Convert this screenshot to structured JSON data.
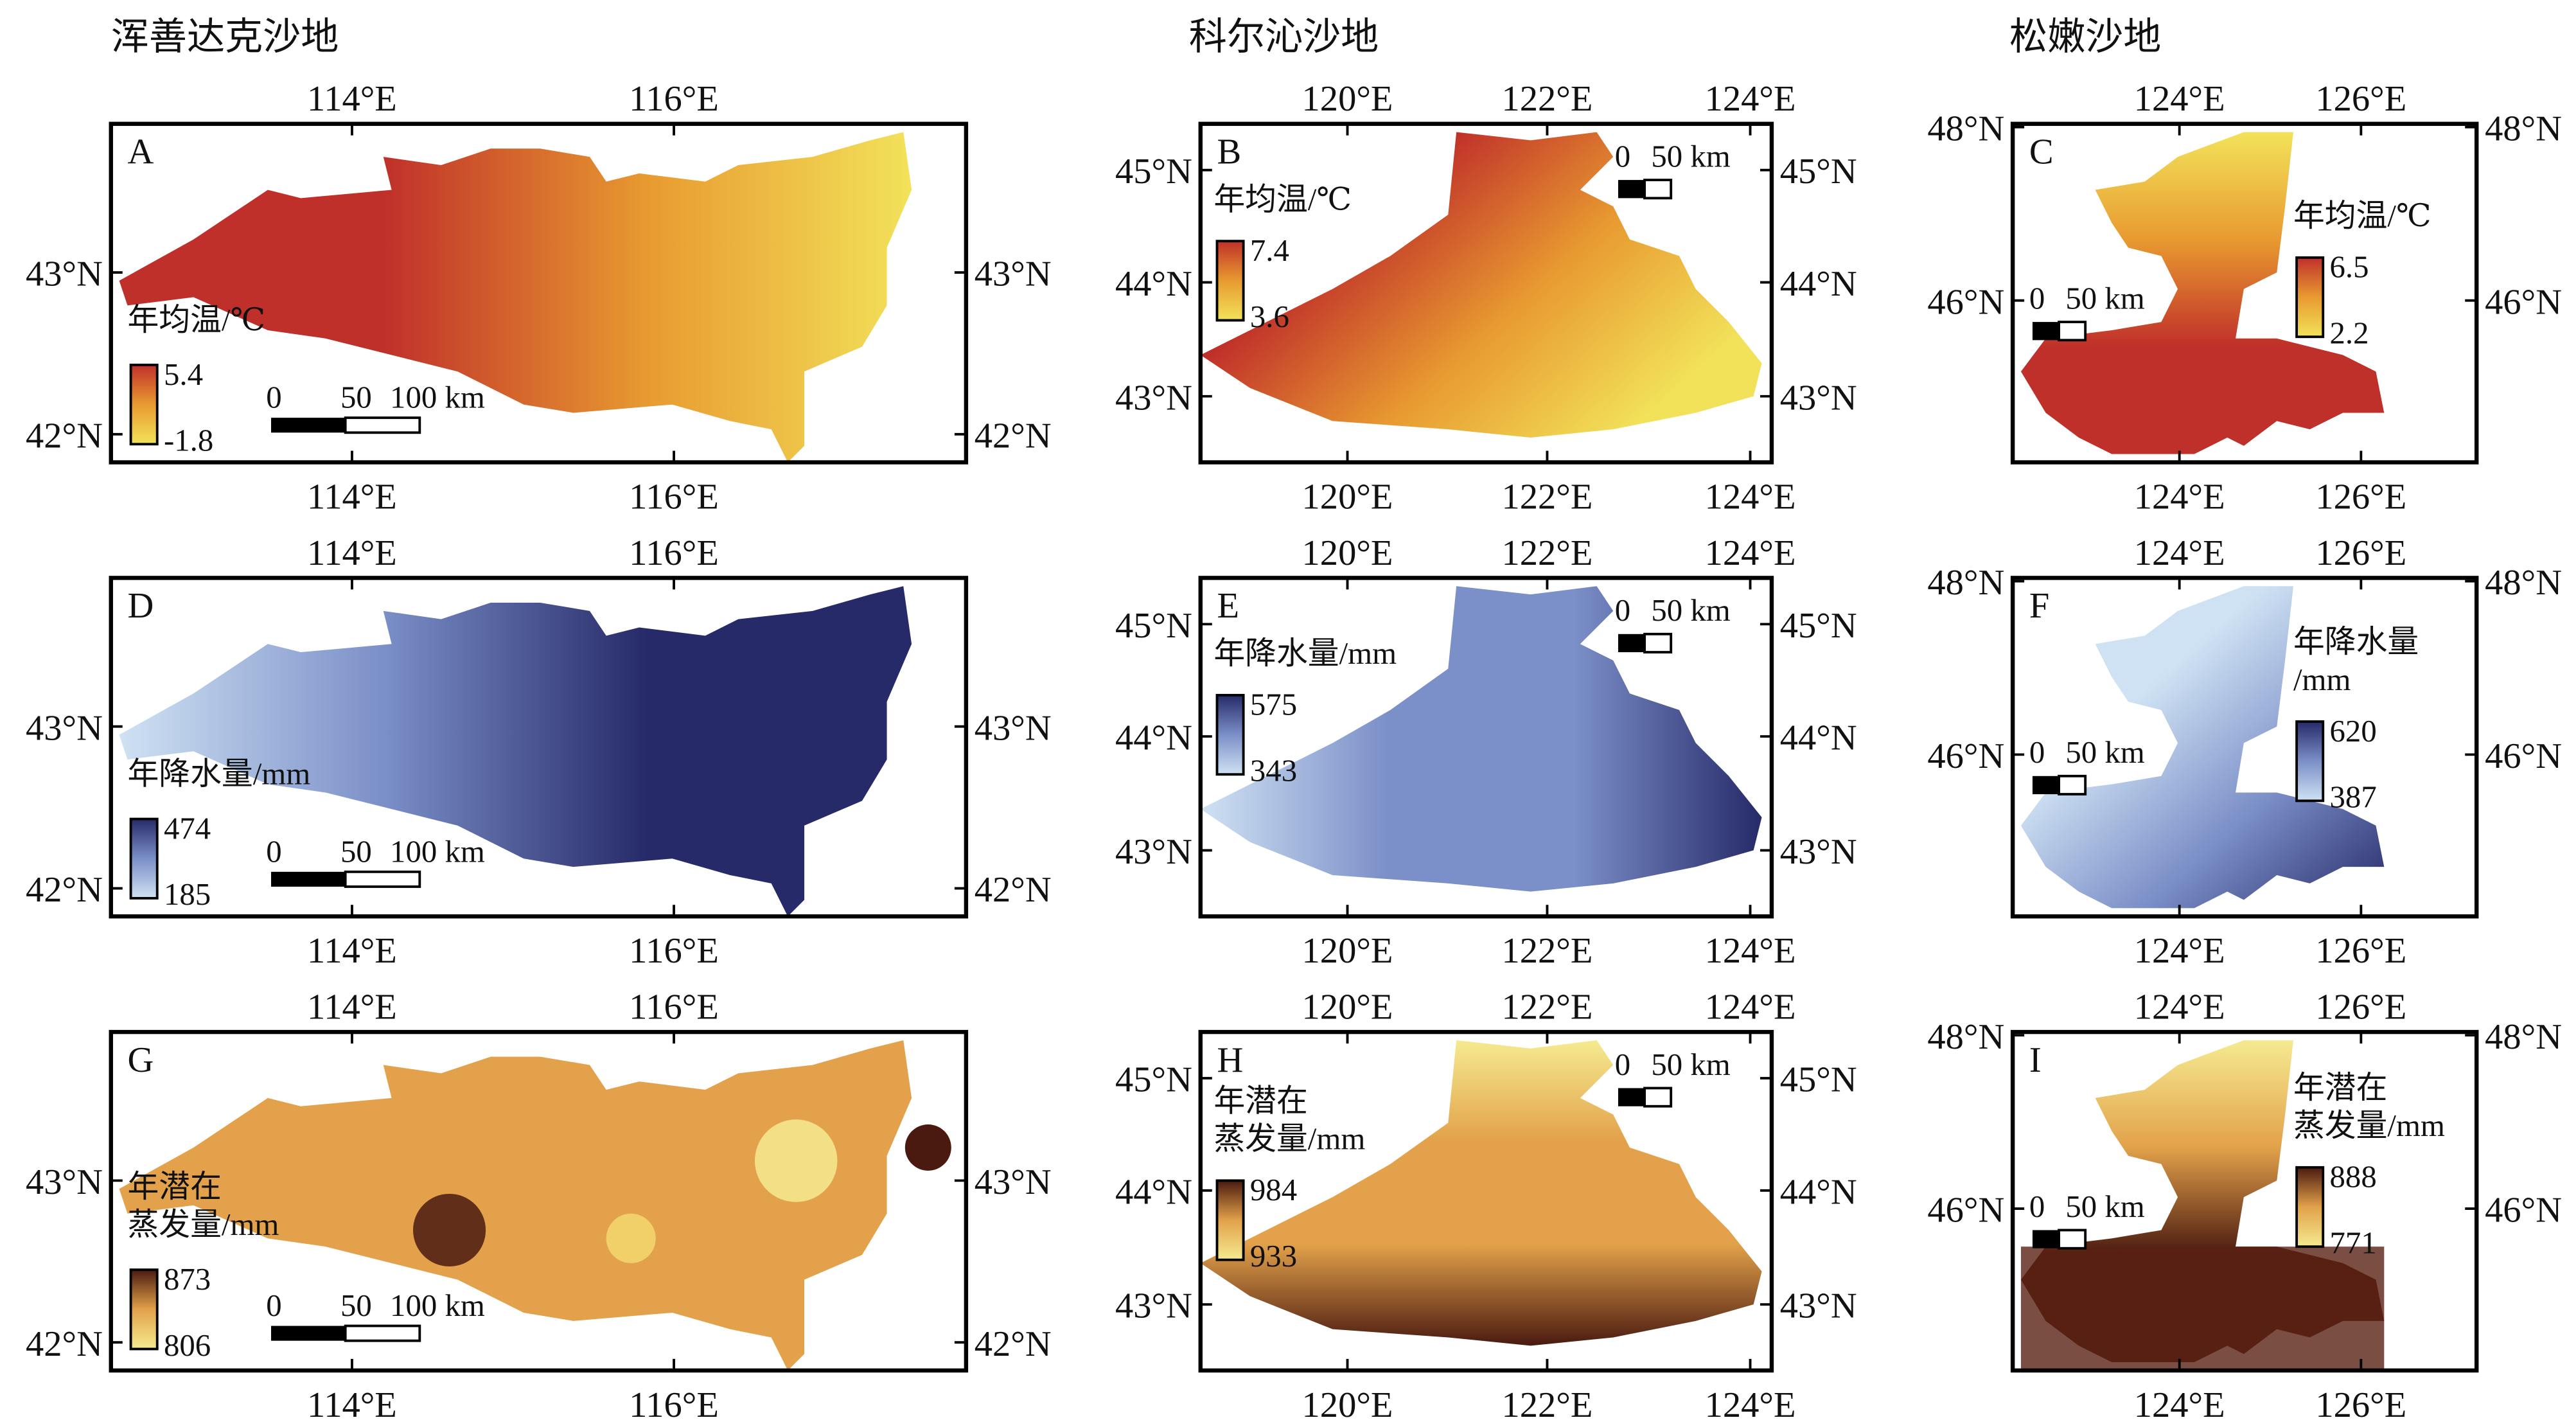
{
  "regions": [
    {
      "title": "浑善达克沙地",
      "lon_ticks": [
        "114°E",
        "116°E"
      ],
      "lat_ticks": [
        "43°N",
        "42°N"
      ]
    },
    {
      "title": "科尔沁沙地",
      "lon_ticks": [
        "120°E",
        "122°E",
        "124°E"
      ],
      "lat_ticks": [
        "45°N",
        "44°N",
        "43°N"
      ]
    },
    {
      "title": "松嫩沙地",
      "lon_ticks": [
        "124°E",
        "126°E"
      ],
      "lat_ticks": [
        "48°N",
        "46°N"
      ]
    }
  ],
  "panels": [
    {
      "id": "A",
      "legend_title": [
        "年均温/℃"
      ],
      "max": "5.4",
      "min": "-1.8",
      "scale": [
        "0",
        "50",
        "100 km"
      ]
    },
    {
      "id": "B",
      "legend_title": [
        "年均温/℃"
      ],
      "max": "7.4",
      "min": "3.6",
      "scale": [
        "0",
        "50 km"
      ]
    },
    {
      "id": "C",
      "legend_title": [
        "年均温/℃"
      ],
      "max": "6.5",
      "min": "2.2",
      "scale": [
        "0",
        "50 km"
      ]
    },
    {
      "id": "D",
      "legend_title": [
        "年降水量/mm"
      ],
      "max": "474",
      "min": "185",
      "scale": [
        "0",
        "50",
        "100 km"
      ]
    },
    {
      "id": "E",
      "legend_title": [
        "年降水量/mm"
      ],
      "max": "575",
      "min": "343",
      "scale": [
        "0",
        "50 km"
      ]
    },
    {
      "id": "F",
      "legend_title": [
        "年降水量",
        "/mm"
      ],
      "max": "620",
      "min": "387",
      "scale": [
        "0",
        "50 km"
      ]
    },
    {
      "id": "G",
      "legend_title": [
        "年潜在",
        "蒸发量/mm"
      ],
      "max": "873",
      "min": "806",
      "scale": [
        "0",
        "50",
        "100 km"
      ]
    },
    {
      "id": "H",
      "legend_title": [
        "年潜在",
        "蒸发量/mm"
      ],
      "max": "984",
      "min": "933",
      "scale": [
        "0",
        "50 km"
      ]
    },
    {
      "id": "I",
      "legend_title": [
        "年潜在",
        "蒸发量/mm"
      ],
      "max": "888",
      "min": "771",
      "scale": [
        "0",
        "50 km"
      ]
    }
  ],
  "colors": {
    "temperature": [
      "#f2e25a",
      "#e89a30",
      "#c0302a"
    ],
    "precipitation": [
      "#cfe2f3",
      "#7b8fc8",
      "#262a68"
    ],
    "evaporation": [
      "#f5ea90",
      "#e2a14a",
      "#4a1a10"
    ]
  }
}
